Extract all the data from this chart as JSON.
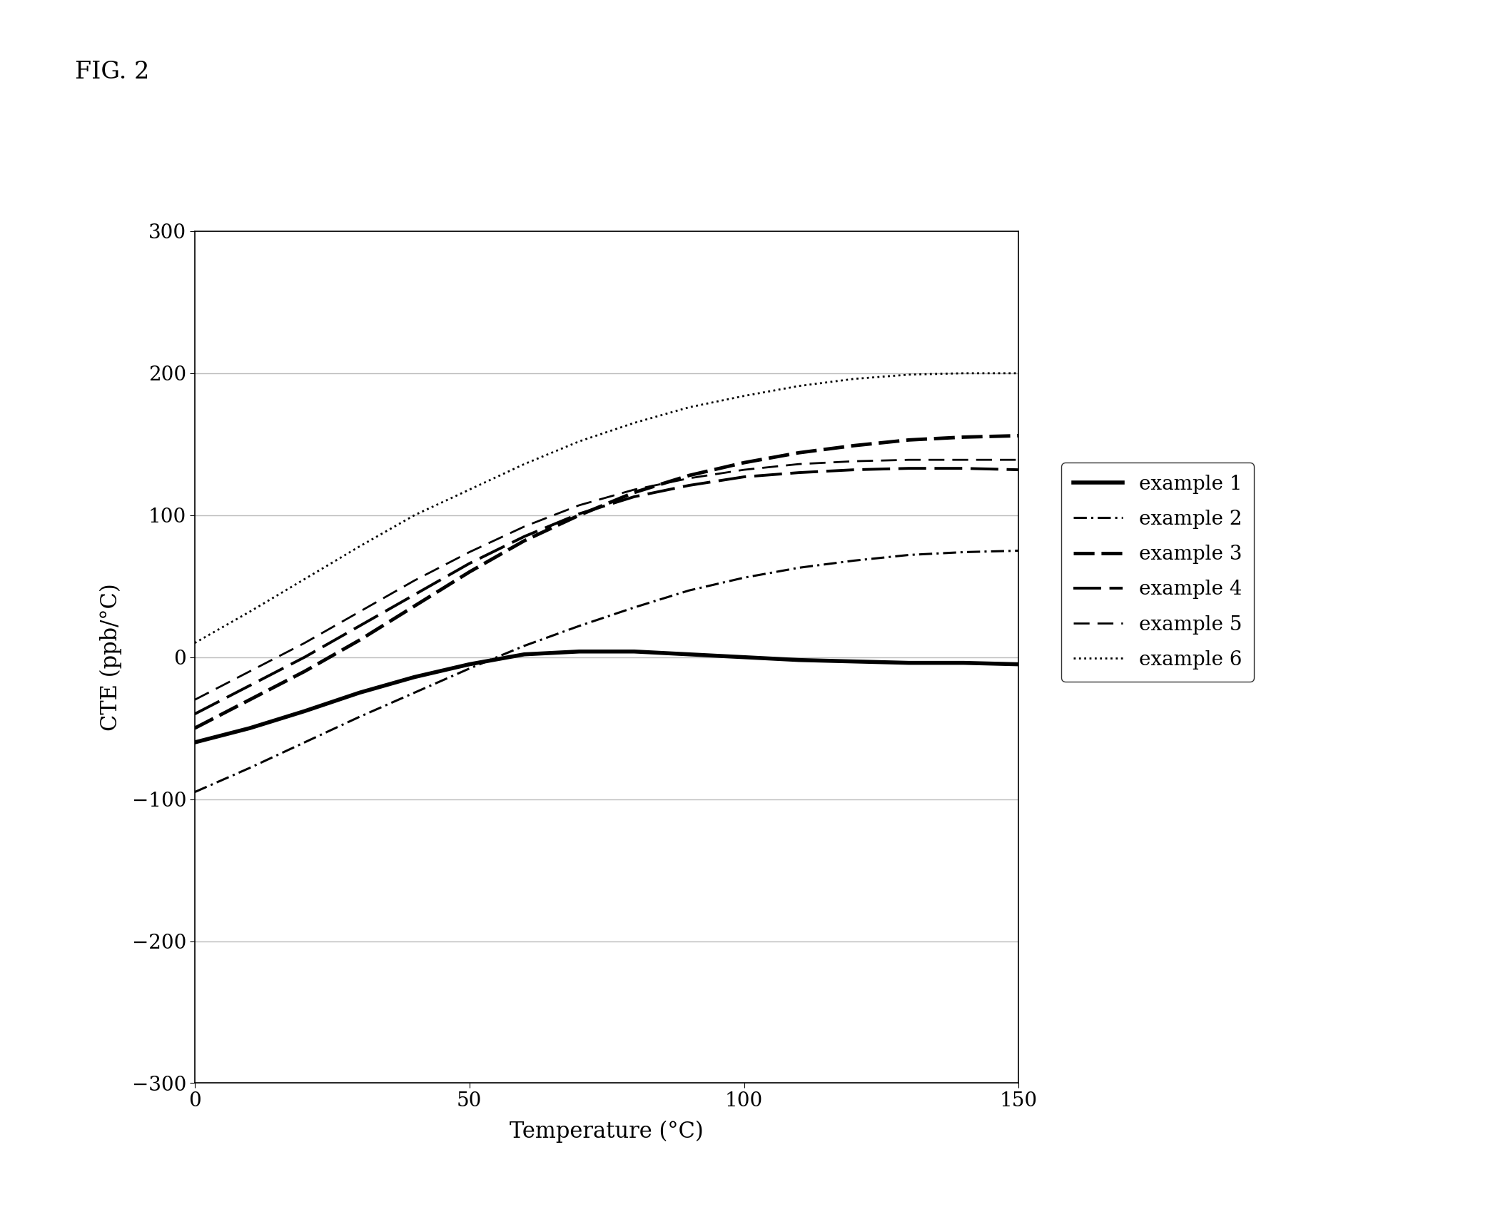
{
  "fig_label": "FIG. 2",
  "xlabel": "Temperature (°C)",
  "ylabel": "CTE (ppb/°C)",
  "xlim": [
    0,
    150
  ],
  "ylim": [
    -300,
    300
  ],
  "yticks": [
    -300,
    -200,
    -100,
    0,
    100,
    200,
    300
  ],
  "xticks": [
    0,
    50,
    100,
    150
  ],
  "grid_color": "#bbbbbb",
  "bg_color": "#ffffff",
  "series": [
    {
      "label": "example 1",
      "x": [
        0,
        10,
        20,
        30,
        40,
        50,
        60,
        70,
        80,
        90,
        100,
        110,
        120,
        130,
        140,
        150
      ],
      "y": [
        -60,
        -50,
        -38,
        -25,
        -14,
        -5,
        2,
        4,
        4,
        2,
        0,
        -2,
        -3,
        -4,
        -4,
        -5
      ],
      "color": "#000000",
      "linewidth": 4.0,
      "linestyle": "solid"
    },
    {
      "label": "example 2",
      "x": [
        0,
        10,
        20,
        30,
        40,
        50,
        60,
        70,
        80,
        90,
        100,
        110,
        120,
        130,
        140,
        150
      ],
      "y": [
        -95,
        -78,
        -60,
        -42,
        -25,
        -8,
        8,
        22,
        35,
        47,
        56,
        63,
        68,
        72,
        74,
        75
      ],
      "color": "#000000",
      "linewidth": 2.2,
      "linestyle": "dashdot"
    },
    {
      "label": "example 3",
      "x": [
        0,
        10,
        20,
        30,
        40,
        50,
        60,
        70,
        80,
        90,
        100,
        110,
        120,
        130,
        140,
        150
      ],
      "y": [
        -50,
        -30,
        -10,
        12,
        36,
        60,
        82,
        100,
        116,
        128,
        137,
        144,
        149,
        153,
        155,
        156
      ],
      "color": "#000000",
      "linewidth": 3.5,
      "linestyle": "dashed_heavy"
    },
    {
      "label": "example 4",
      "x": [
        0,
        10,
        20,
        30,
        40,
        50,
        60,
        70,
        80,
        90,
        100,
        110,
        120,
        130,
        140,
        150
      ],
      "y": [
        -40,
        -20,
        0,
        22,
        44,
        66,
        85,
        101,
        113,
        121,
        127,
        130,
        132,
        133,
        133,
        132
      ],
      "color": "#000000",
      "linewidth": 2.8,
      "linestyle": "longdash"
    },
    {
      "label": "example 5",
      "x": [
        0,
        10,
        20,
        30,
        40,
        50,
        60,
        70,
        80,
        90,
        100,
        110,
        120,
        130,
        140,
        150
      ],
      "y": [
        -30,
        -10,
        10,
        32,
        54,
        74,
        92,
        107,
        118,
        126,
        132,
        136,
        138,
        139,
        139,
        139
      ],
      "color": "#000000",
      "linewidth": 2.0,
      "linestyle": "dashed"
    },
    {
      "label": "example 6",
      "x": [
        0,
        10,
        20,
        30,
        40,
        50,
        60,
        70,
        80,
        90,
        100,
        110,
        120,
        130,
        140,
        150
      ],
      "y": [
        10,
        32,
        55,
        78,
        100,
        118,
        136,
        152,
        165,
        176,
        184,
        191,
        196,
        199,
        200,
        200
      ],
      "color": "#000000",
      "linewidth": 2.0,
      "linestyle": "dotted"
    }
  ],
  "legend_fontsize": 20,
  "fig_label_fontsize": 24,
  "axis_label_fontsize": 22,
  "tick_fontsize": 20
}
